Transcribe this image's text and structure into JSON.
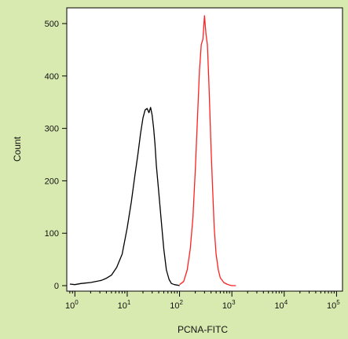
{
  "colors": {
    "background": "#d9eab0",
    "plot_background": "#ffffff",
    "axis": "#000000"
  },
  "chart_data": {
    "type": "line",
    "title": "",
    "xlabel": "PCNA-FITC",
    "ylabel": "Count",
    "xscale": "log",
    "xlim": [
      0.7,
      130000
    ],
    "ylim": [
      0,
      530
    ],
    "grid": false,
    "legend": "none",
    "x_ticks": [
      {
        "value": 1,
        "base": "10",
        "exp": "0"
      },
      {
        "value": 10,
        "base": "10",
        "exp": "1"
      },
      {
        "value": 100,
        "base": "10",
        "exp": "2"
      },
      {
        "value": 1000,
        "base": "10",
        "exp": "3"
      },
      {
        "value": 10000,
        "base": "10",
        "exp": "4"
      },
      {
        "value": 100000,
        "base": "10",
        "exp": "5"
      }
    ],
    "y_ticks": [
      {
        "value": 0,
        "label": "0"
      },
      {
        "value": 100,
        "label": "100"
      },
      {
        "value": 200,
        "label": "200"
      },
      {
        "value": 300,
        "label": "300"
      },
      {
        "value": 400,
        "label": "400"
      },
      {
        "value": 500,
        "label": "500"
      }
    ],
    "series": [
      {
        "color": "#000000",
        "x": [
          0.8,
          1.0,
          1.3,
          1.6,
          2.0,
          2.5,
          3.2,
          4.0,
          5.0,
          6.3,
          8.0,
          10,
          12,
          14,
          16,
          18,
          20,
          22,
          24,
          26,
          28,
          30,
          32,
          34,
          36,
          40,
          45,
          50,
          56,
          63,
          70,
          80,
          90,
          100
        ],
        "y": [
          3,
          2,
          4,
          5,
          6,
          8,
          10,
          14,
          20,
          35,
          60,
          110,
          160,
          210,
          250,
          290,
          320,
          335,
          338,
          330,
          340,
          325,
          300,
          270,
          230,
          180,
          120,
          70,
          30,
          12,
          4,
          2,
          1,
          0
        ]
      },
      {
        "color": "#ff2020",
        "x": [
          100,
          120,
          140,
          160,
          180,
          200,
          220,
          240,
          260,
          280,
          300,
          320,
          340,
          360,
          380,
          400,
          430,
          460,
          500,
          550,
          600,
          700,
          800,
          900,
          1000,
          1200
        ],
        "y": [
          2,
          8,
          30,
          70,
          130,
          220,
          320,
          410,
          460,
          470,
          515,
          480,
          460,
          400,
          330,
          260,
          180,
          110,
          60,
          30,
          15,
          6,
          3,
          1,
          0,
          0
        ]
      }
    ]
  }
}
